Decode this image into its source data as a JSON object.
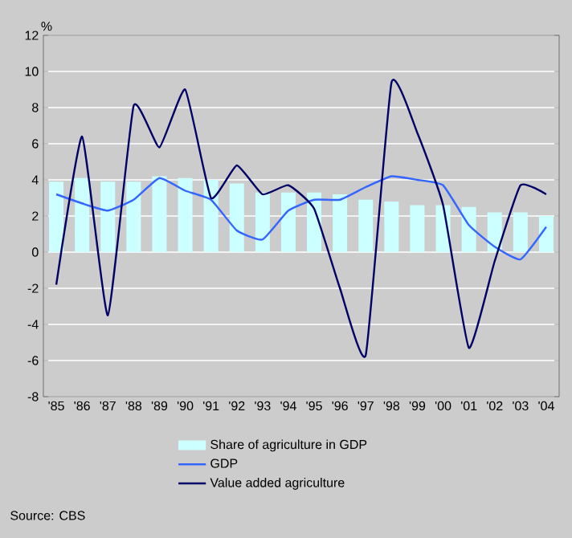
{
  "chart_data": {
    "type": "bar",
    "ylabel": "%",
    "annotations": [
      "Source: CBS"
    ],
    "categories": [
      "'85",
      "'86",
      "'87",
      "'88",
      "'89",
      "'90",
      "'91",
      "'92",
      "'93",
      "'94",
      "'95",
      "'96",
      "'97",
      "'98",
      "'99",
      "'00",
      "'01",
      "'02",
      "'03",
      "'04"
    ],
    "series": [
      {
        "name": "Share of agriculture in GDP",
        "color": "#ccffff",
        "values": [
          3.9,
          4.1,
          3.9,
          3.9,
          4.2,
          4.1,
          4.0,
          3.8,
          3.3,
          3.3,
          3.3,
          3.2,
          2.9,
          2.8,
          2.6,
          2.6,
          2.5,
          2.2,
          2.2,
          2.0
        ]
      },
      {
        "name": "GDP",
        "type": "line",
        "color": "#3366ff",
        "values": [
          3.2,
          2.7,
          2.3,
          2.9,
          4.1,
          3.4,
          2.9,
          1.2,
          0.7,
          2.3,
          2.9,
          2.9,
          3.6,
          4.2,
          4.0,
          3.7,
          1.5,
          0.3,
          -0.4,
          1.4
        ]
      },
      {
        "name": "Value added agriculture",
        "type": "line",
        "color": "#000066",
        "values": [
          -1.8,
          6.4,
          -3.5,
          8.1,
          5.8,
          9.0,
          3.0,
          4.8,
          3.2,
          3.7,
          2.4,
          -2.0,
          -5.7,
          9.4,
          6.6,
          2.6,
          -5.3,
          -0.5,
          3.7,
          3.2
        ]
      }
    ],
    "ylim": [
      -8,
      12
    ],
    "yticks": [
      -8,
      -6,
      -4,
      -2,
      0,
      2,
      4,
      6,
      8,
      10,
      12
    ],
    "grid": "y",
    "legend": "bottom",
    "marker": "none",
    "line_style": "solid"
  }
}
